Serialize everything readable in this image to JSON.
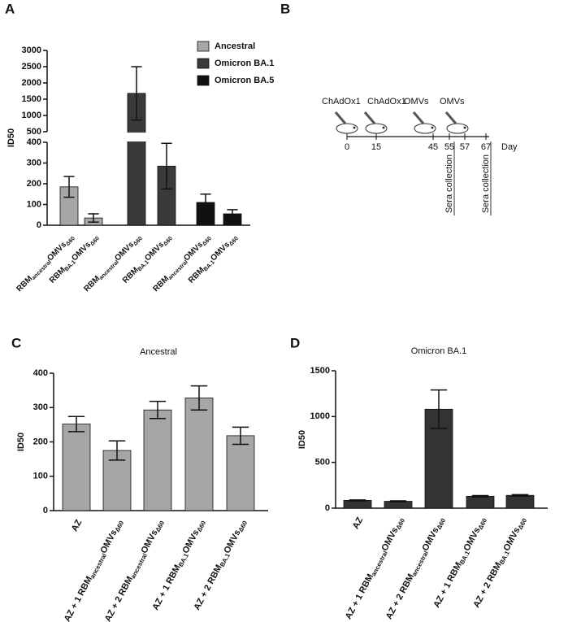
{
  "panels": [
    "A",
    "B",
    "C",
    "D"
  ],
  "chart_data": [
    {
      "type": "bar",
      "y_label": "ID50",
      "categories": [
        [
          "RBM",
          "ancestral",
          "OMVs",
          "Δ60"
        ],
        [
          "RBM",
          "BA.1",
          "OMVs",
          "Δ60"
        ],
        [
          "RBM",
          "ancestral",
          "OMVs",
          "Δ60"
        ],
        [
          "RBM",
          "BA.1",
          "OMVs",
          "Δ60"
        ],
        [
          "RBM",
          "ancestral",
          "OMVs",
          "Δ60"
        ],
        [
          "RBM",
          "BA.1",
          "OMVs",
          "Δ60"
        ]
      ],
      "series": [
        {
          "name": "Ancestral",
          "color": "#a6a6a6",
          "values": [
            185,
            35,
            null,
            null,
            null,
            null
          ],
          "errors": [
            50,
            20,
            null,
            null,
            null,
            null
          ]
        },
        {
          "name": "Omicron BA.1",
          "color": "#3a3a3a",
          "values": [
            null,
            null,
            1680,
            285,
            null,
            null
          ],
          "errors": [
            null,
            null,
            820,
            110,
            null,
            null
          ]
        },
        {
          "name": "Omicron BA.5",
          "color": "#111111",
          "values": [
            null,
            null,
            null,
            null,
            110,
            55
          ],
          "errors": [
            null,
            null,
            null,
            null,
            40,
            20
          ]
        }
      ],
      "ylim": [
        0,
        3000
      ],
      "y_break": [
        400,
        500
      ],
      "yticks": [
        0,
        100,
        200,
        300,
        400,
        500,
        1000,
        1500,
        2000,
        2500,
        3000
      ]
    },
    {
      "type": "bar",
      "title": "Ancestral",
      "y_label": "ID50",
      "categories": [
        [
          "AZ"
        ],
        [
          "AZ + 1 RBM",
          "ancestral",
          "OMVs",
          "Δ60"
        ],
        [
          "AZ + 2 RBM",
          "ancestral",
          "OMVs",
          "Δ60"
        ],
        [
          "AZ + 1 RBM",
          "BA.1",
          "OMVs",
          "Δ60"
        ],
        [
          "AZ + 2 RBM",
          "BA.1",
          "OMVs",
          "Δ60"
        ]
      ],
      "values": [
        252,
        175,
        293,
        328,
        218
      ],
      "errors": [
        22,
        28,
        25,
        35,
        25
      ],
      "color": "#a6a6a6",
      "ylim": [
        0,
        400
      ],
      "yticks": [
        0,
        100,
        200,
        300,
        400
      ]
    },
    {
      "type": "bar",
      "title": "Omicron BA.1",
      "y_label": "ID50",
      "categories": [
        [
          "AZ"
        ],
        [
          "AZ + 1 RBM",
          "ancestral",
          "OMVs",
          "Δ60"
        ],
        [
          "AZ + 2 RBM",
          "ancestral",
          "OMVs",
          "Δ60"
        ],
        [
          "AZ + 1 RBM",
          "BA.1",
          "OMVs",
          "Δ60"
        ],
        [
          "AZ + 2 RBM",
          "BA.1",
          "OMVs",
          "Δ60"
        ]
      ],
      "values": [
        85,
        75,
        1080,
        130,
        140
      ],
      "errors": [
        5,
        5,
        210,
        8,
        8
      ],
      "color": "#333333",
      "ylim": [
        0,
        1500
      ],
      "yticks": [
        0,
        500,
        1000,
        1500
      ]
    }
  ],
  "diagram": {
    "vaccinations": [
      "ChAdOx1",
      "ChAdOx1",
      "OMVs",
      "OMVs"
    ],
    "days": [
      0,
      15,
      45,
      55,
      57,
      67
    ],
    "day_label": "Day",
    "collections": [
      "Sera collection",
      "Sera collection"
    ]
  }
}
